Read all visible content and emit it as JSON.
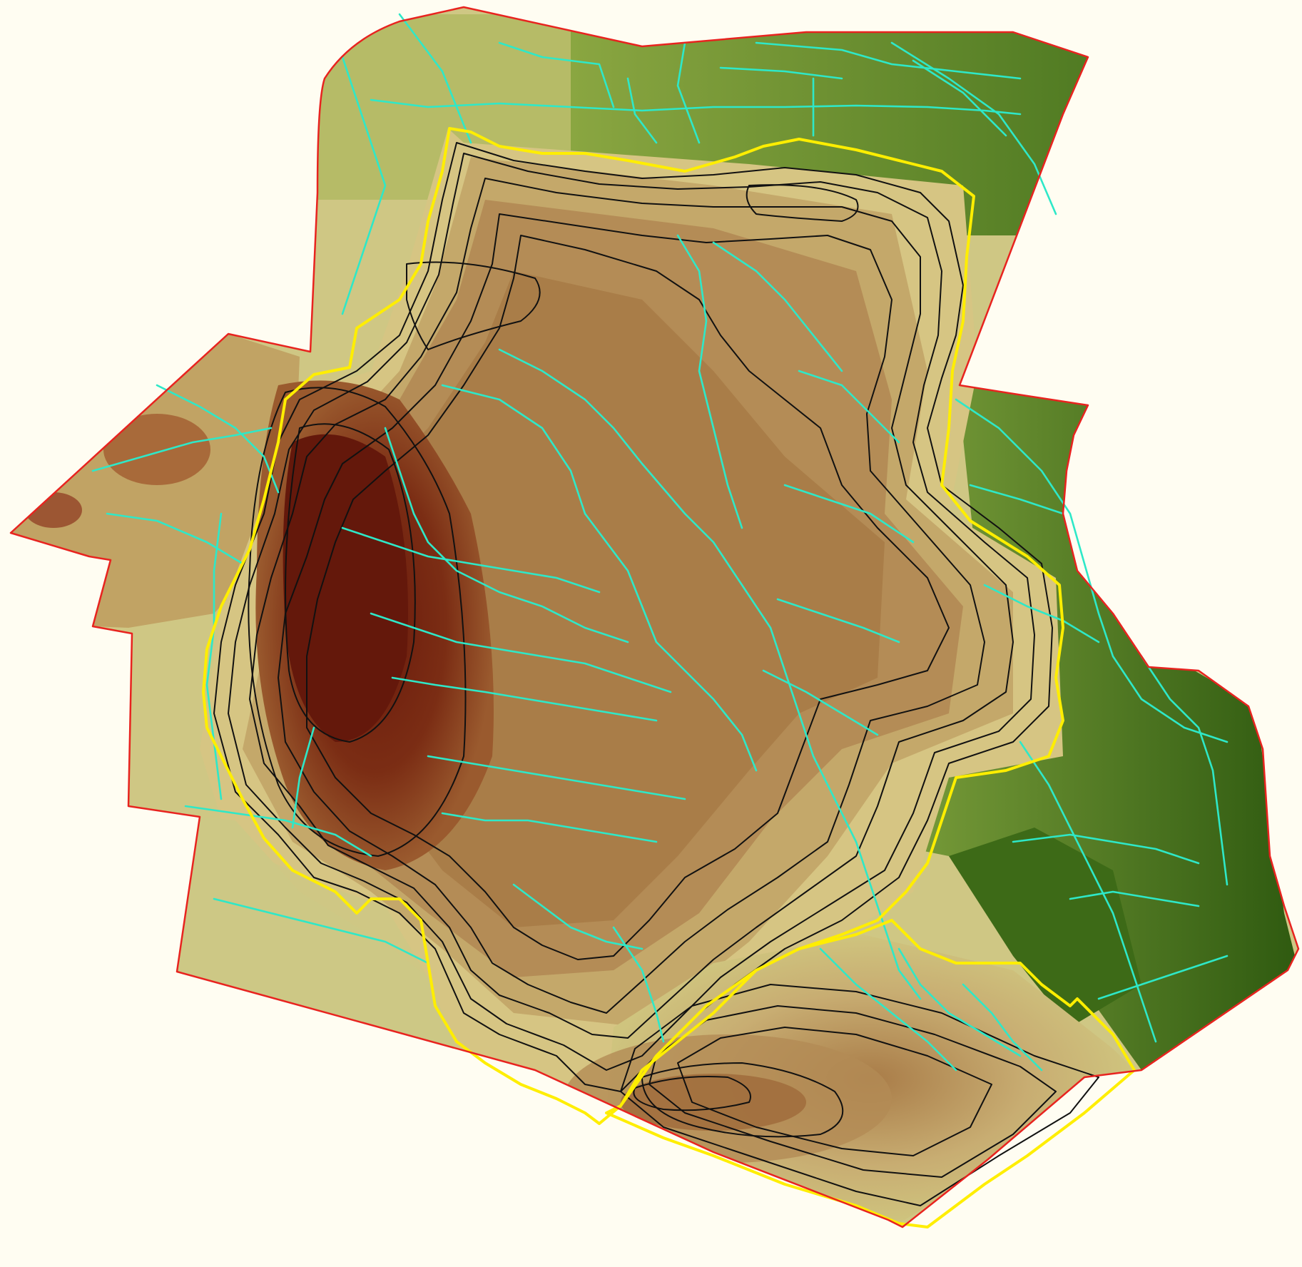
{
  "map": {
    "kind": "terrain elevation map with contour lines and drainage network",
    "colors": {
      "background": "#fffdf2",
      "outer_boundary": "#e8231f",
      "watershed_boundary": "#ffee00",
      "contours": "#111111",
      "streams": "#2ee8c8",
      "elevation_ramp": [
        "#3f6b17",
        "#7fa23a",
        "#c9cc6e",
        "#d5c785",
        "#b2874f",
        "#8b4a26",
        "#6e1f10"
      ]
    },
    "legend": null,
    "labels": []
  }
}
